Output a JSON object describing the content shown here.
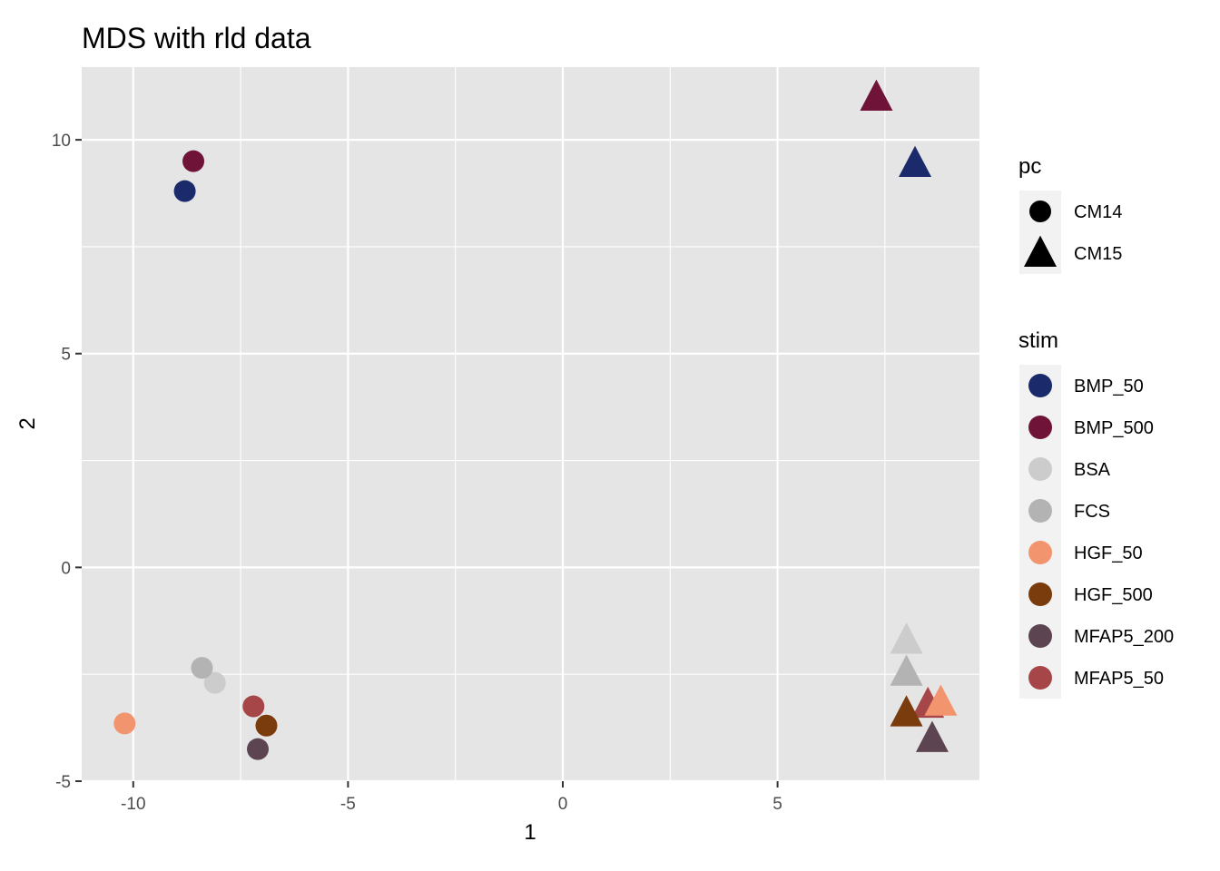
{
  "chart_data": {
    "type": "scatter",
    "title": "MDS with rld data",
    "xlabel": "1",
    "ylabel": "2",
    "xlim": [
      -11.2,
      9.7
    ],
    "ylim": [
      -5.0,
      11.7
    ],
    "xticks": [
      -10,
      -5,
      0,
      5
    ],
    "yticks": [
      -5,
      0,
      5,
      10
    ],
    "grid": true,
    "legend_position": "right",
    "shape_legend": {
      "title": "pc",
      "entries": [
        {
          "label": "CM14",
          "shape": "circle"
        },
        {
          "label": "CM15",
          "shape": "triangle"
        }
      ]
    },
    "color_legend": {
      "title": "stim",
      "entries": [
        {
          "label": "BMP_50",
          "color": "#1b2a6b"
        },
        {
          "label": "BMP_500",
          "color": "#6f1438"
        },
        {
          "label": "BSA",
          "color": "#cccccc"
        },
        {
          "label": "FCS",
          "color": "#b3b3b3"
        },
        {
          "label": "HGF_50",
          "color": "#f2956e"
        },
        {
          "label": "HGF_500",
          "color": "#7a3b0d"
        },
        {
          "label": "MFAP5_200",
          "color": "#5c4450"
        },
        {
          "label": "MFAP5_50",
          "color": "#a64648"
        }
      ]
    },
    "points": [
      {
        "stim": "BMP_50",
        "pc": "CM14",
        "x": -8.8,
        "y": 8.8
      },
      {
        "stim": "BMP_500",
        "pc": "CM14",
        "x": -8.6,
        "y": 9.5
      },
      {
        "stim": "BSA",
        "pc": "CM14",
        "x": -8.1,
        "y": -2.7
      },
      {
        "stim": "FCS",
        "pc": "CM14",
        "x": -8.4,
        "y": -2.35
      },
      {
        "stim": "HGF_50",
        "pc": "CM14",
        "x": -10.2,
        "y": -3.65
      },
      {
        "stim": "HGF_500",
        "pc": "CM14",
        "x": -6.9,
        "y": -3.7
      },
      {
        "stim": "MFAP5_200",
        "pc": "CM14",
        "x": -7.1,
        "y": -4.25
      },
      {
        "stim": "MFAP5_50",
        "pc": "CM14",
        "x": -7.2,
        "y": -3.25
      },
      {
        "stim": "BMP_500",
        "pc": "CM15",
        "x": 7.3,
        "y": 11.0
      },
      {
        "stim": "BMP_50",
        "pc": "CM15",
        "x": 8.2,
        "y": 9.45
      },
      {
        "stim": "BSA",
        "pc": "CM15",
        "x": 8.0,
        "y": -1.7
      },
      {
        "stim": "FCS",
        "pc": "CM15",
        "x": 8.0,
        "y": -2.45
      },
      {
        "stim": "MFAP5_50",
        "pc": "CM15",
        "x": 8.5,
        "y": -3.2
      },
      {
        "stim": "HGF_50",
        "pc": "CM15",
        "x": 8.8,
        "y": -3.15
      },
      {
        "stim": "HGF_500",
        "pc": "CM15",
        "x": 8.0,
        "y": -3.4
      },
      {
        "stim": "MFAP5_200",
        "pc": "CM15",
        "x": 8.6,
        "y": -4.0
      }
    ]
  }
}
